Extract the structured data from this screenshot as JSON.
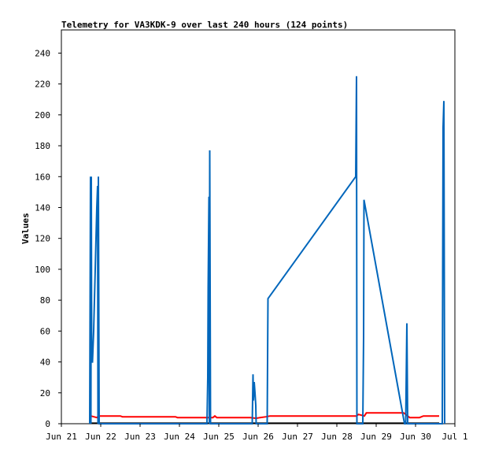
{
  "chart_data": {
    "type": "line",
    "title": "Telemetry for VA3KDK-9 over last 240 hours (124 points)",
    "ylabel": "Values",
    "xlabel": "",
    "xlim": [
      0,
      10
    ],
    "ylim": [
      0,
      255
    ],
    "yticks": [
      0,
      20,
      40,
      60,
      80,
      100,
      120,
      140,
      160,
      180,
      200,
      220,
      240
    ],
    "xticks": [
      {
        "x": 0,
        "label": "Jun 21"
      },
      {
        "x": 1,
        "label": "Jun 22"
      },
      {
        "x": 2,
        "label": "Jun 23"
      },
      {
        "x": 3,
        "label": "Jun 24"
      },
      {
        "x": 4,
        "label": "Jun 25"
      },
      {
        "x": 5,
        "label": "Jun 26"
      },
      {
        "x": 6,
        "label": "Jun 27"
      },
      {
        "x": 7,
        "label": "Jun 28"
      },
      {
        "x": 8,
        "label": "Jun 29"
      },
      {
        "x": 9,
        "label": "Jun 30"
      },
      {
        "x": 10,
        "label": "Jul 1"
      }
    ],
    "grid": false,
    "legend": "none",
    "series": [
      {
        "color": "#ff0000",
        "points": [
          [
            0.75,
            5
          ],
          [
            0.9,
            4
          ],
          [
            0.95,
            5
          ],
          [
            1.5,
            5
          ],
          [
            1.55,
            4.5
          ],
          [
            2.9,
            4.5
          ],
          [
            2.95,
            4
          ],
          [
            3.85,
            4
          ],
          [
            3.9,
            5
          ],
          [
            3.95,
            4
          ],
          [
            4.6,
            4
          ],
          [
            4.8,
            4
          ],
          [
            4.95,
            3.5
          ],
          [
            5.05,
            4
          ],
          [
            5.2,
            4.5
          ],
          [
            5.3,
            5
          ],
          [
            7.5,
            5
          ],
          [
            7.55,
            6
          ],
          [
            7.7,
            5
          ],
          [
            7.75,
            7
          ],
          [
            8.1,
            7
          ],
          [
            8.7,
            7
          ],
          [
            8.75,
            6
          ],
          [
            8.85,
            4
          ],
          [
            9.1,
            4
          ],
          [
            9.2,
            5
          ],
          [
            9.5,
            5
          ],
          [
            9.6,
            5
          ]
        ]
      },
      {
        "color": "#000000",
        "points": [
          [
            0.75,
            0.3
          ],
          [
            9.6,
            0.3
          ]
        ]
      },
      {
        "color": "#0066bb",
        "points": [
          [
            0.72,
            0
          ],
          [
            0.74,
            160
          ],
          [
            0.75,
            0
          ],
          [
            0.76,
            160
          ],
          [
            0.77,
            40
          ],
          [
            0.79,
            40
          ],
          [
            0.82,
            60
          ],
          [
            0.84,
            80
          ],
          [
            0.86,
            100
          ],
          [
            0.88,
            120
          ],
          [
            0.9,
            140
          ],
          [
            0.92,
            154
          ],
          [
            0.93,
            0
          ],
          [
            0.94,
            160
          ],
          [
            0.95,
            80
          ],
          [
            0.96,
            0
          ],
          [
            3.7,
            0
          ],
          [
            3.72,
            30
          ],
          [
            3.73,
            88
          ],
          [
            3.75,
            147
          ],
          [
            3.76,
            0
          ],
          [
            3.77,
            177
          ],
          [
            3.79,
            0
          ],
          [
            4.85,
            0
          ],
          [
            4.87,
            32
          ],
          [
            4.88,
            15
          ],
          [
            4.9,
            27
          ],
          [
            4.92,
            20
          ],
          [
            4.94,
            12
          ],
          [
            4.95,
            0
          ],
          [
            5.23,
            0
          ],
          [
            5.25,
            81
          ],
          [
            7.48,
            160
          ],
          [
            7.5,
            225
          ],
          [
            7.51,
            0
          ],
          [
            7.66,
            0
          ],
          [
            7.68,
            56
          ],
          [
            7.69,
            145
          ],
          [
            8.72,
            0
          ],
          [
            8.75,
            0
          ],
          [
            8.78,
            65
          ],
          [
            8.8,
            0
          ],
          [
            9.68,
            0
          ],
          [
            9.7,
            192
          ],
          [
            9.72,
            209
          ],
          [
            9.74,
            0
          ]
        ]
      }
    ]
  }
}
